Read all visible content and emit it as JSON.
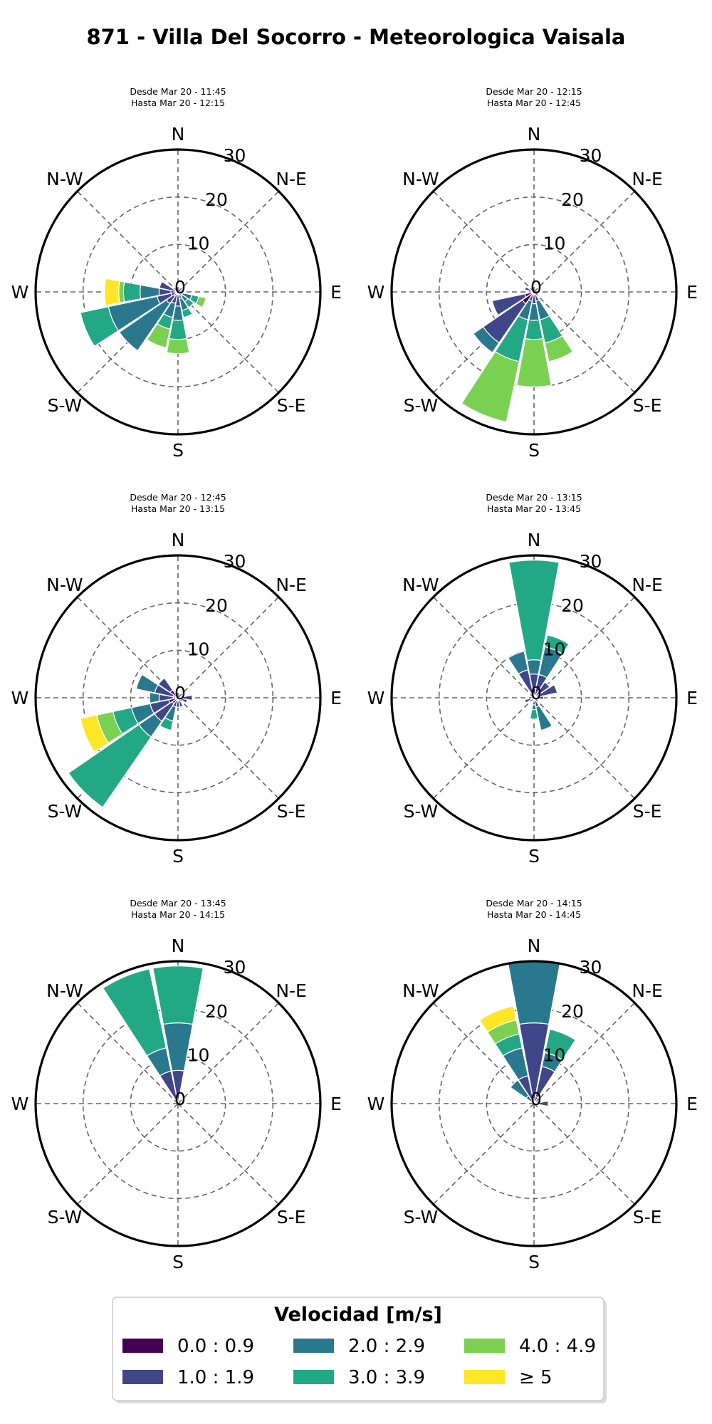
{
  "chart_data": {
    "type": "windrose",
    "title": "871 - Villa Del Socorro - Meteorologica Vaisala",
    "direction_labels": [
      "N",
      "N-E",
      "E",
      "S-E",
      "S",
      "S-W",
      "W",
      "N-W"
    ],
    "radial_ticks": [
      0,
      10,
      20,
      30
    ],
    "r_max": 30,
    "grid": true,
    "legend": {
      "title": "Velocidad [m/s]",
      "placement": "bottom-center",
      "bins": [
        {
          "label": "0.0 : 0.9",
          "color": "#440154"
        },
        {
          "label": "1.0 : 1.9",
          "color": "#3f4788"
        },
        {
          "label": "2.0 : 2.9",
          "color": "#2a788e"
        },
        {
          "label": "3.0 : 3.9",
          "color": "#22a884"
        },
        {
          "label": "4.0 : 4.9",
          "color": "#7ad151"
        },
        {
          "label": "≥  5",
          "color": "#fde725"
        }
      ]
    },
    "panels": [
      {
        "subtitle_from": "Desde Mar 20 - 11:45",
        "subtitle_to": "Hasta Mar 20 - 12:15",
        "sectors": [
          {
            "dir": 112.5,
            "cum": [
              0,
              1,
              3,
              4.5,
              6
            ]
          },
          {
            "dir": 135,
            "cum": [
              0,
              1,
              2.5,
              4
            ]
          },
          {
            "dir": 157.5,
            "cum": [
              0,
              1.5,
              4,
              5.5
            ]
          },
          {
            "dir": 180,
            "cum": [
              0,
              3,
              6,
              10,
              13
            ]
          },
          {
            "dir": 202.5,
            "cum": [
              0.5,
              2.5,
              5.5,
              8,
              12
            ]
          },
          {
            "dir": 225,
            "cum": [
              1,
              3,
              15
            ]
          },
          {
            "dir": 247.5,
            "cum": [
              1.5,
              4.5,
              15,
              21
            ]
          },
          {
            "dir": 270,
            "cum": [
              1.5,
              4,
              8,
              11.5,
              12.5,
              15.5
            ]
          },
          {
            "dir": 292.5,
            "cum": [
              0.5,
              4
            ]
          }
        ]
      },
      {
        "subtitle_from": "Desde Mar 20 - 12:15",
        "subtitle_to": "Hasta Mar 20 - 12:45",
        "sectors": [
          {
            "dir": 157.5,
            "cum": [
              0,
              2,
              6,
              11,
              15
            ]
          },
          {
            "dir": 180,
            "cum": [
              0,
              2.5,
              6,
              10,
              20
            ]
          },
          {
            "dir": 202.5,
            "cum": [
              0,
              2,
              6,
              15,
              28
            ]
          },
          {
            "dir": 225,
            "cum": [
              3,
              13,
              15.5
            ]
          },
          {
            "dir": 247.5,
            "cum": [
              2,
              9
            ]
          },
          {
            "dir": 292.5,
            "cum": [
              0.5,
              2
            ]
          }
        ]
      },
      {
        "subtitle_from": "Desde Mar 20 - 12:45",
        "subtitle_to": "Hasta Mar 20 - 13:15",
        "sectors": [
          {
            "dir": 90,
            "cum": [
              0,
              3
            ]
          },
          {
            "dir": 112.5,
            "cum": [
              0,
              2
            ]
          },
          {
            "dir": 157.5,
            "cum": [
              0,
              2
            ]
          },
          {
            "dir": 180,
            "cum": [
              0.5,
              2
            ]
          },
          {
            "dir": 202.5,
            "cum": [
              0.5,
              2,
              5,
              7
            ]
          },
          {
            "dir": 225,
            "cum": [
              1.5,
              6,
              10,
              28
            ]
          },
          {
            "dir": 247.5,
            "cum": [
              2,
              6,
              10,
              14,
              17.5,
              21
            ]
          },
          {
            "dir": 270,
            "cum": [
              1,
              4,
              6
            ]
          },
          {
            "dir": 292.5,
            "cum": [
              1,
              5,
              9
            ]
          },
          {
            "dir": 315,
            "cum": [
              2,
              5
            ]
          }
        ]
      },
      {
        "subtitle_from": "Desde Mar 20 - 13:15",
        "subtitle_to": "Hasta Mar 20 - 13:45",
        "sectors": [
          {
            "dir": 0,
            "cum": [
              2,
              5,
              8,
              29
            ]
          },
          {
            "dir": 22.5,
            "cum": [
              0,
              5,
              11,
              13.5
            ]
          },
          {
            "dir": 45,
            "cum": [
              0.5,
              4
            ]
          },
          {
            "dir": 67.5,
            "cum": [
              0.5,
              5
            ]
          },
          {
            "dir": 90,
            "cum": [
              0.5,
              2
            ]
          },
          {
            "dir": 157.5,
            "cum": [
              0.5,
              2,
              7
            ]
          },
          {
            "dir": 180,
            "cum": [
              0,
              1.5,
              2.5,
              4.5
            ]
          },
          {
            "dir": 247.5,
            "cum": [
              0.5,
              2
            ]
          },
          {
            "dir": 337.5,
            "cum": [
              0.5,
              6,
              10
            ]
          }
        ]
      },
      {
        "subtitle_from": "Desde Mar 20 - 13:45",
        "subtitle_to": "Hasta Mar 20 - 14:15",
        "sectors": [
          {
            "dir": 0,
            "cum": [
              1,
              7,
              17,
              29
            ]
          },
          {
            "dir": 337.5,
            "cum": [
              1,
              7,
              12,
              29
            ]
          }
        ]
      },
      {
        "subtitle_from": "Desde Mar 20 - 14:15",
        "subtitle_to": "Hasta Mar 20 - 14:45",
        "sectors": [
          {
            "dir": 0,
            "cum": [
              1,
              17,
              30
            ]
          },
          {
            "dir": 22.5,
            "cum": [
              1.5,
              8,
              11,
              16
            ]
          },
          {
            "dir": 45,
            "cum": [
              0.5,
              1.5
            ]
          },
          {
            "dir": 67.5,
            "cum": [
              0,
              1.5
            ]
          },
          {
            "dir": 90,
            "cum": [
              0.5,
              3
            ]
          },
          {
            "dir": 337.5,
            "cum": [
              1,
              6,
              12,
              15,
              18,
              21
            ]
          },
          {
            "dir": 315,
            "cum": [
              0.5,
              2,
              6
            ]
          }
        ]
      }
    ]
  }
}
